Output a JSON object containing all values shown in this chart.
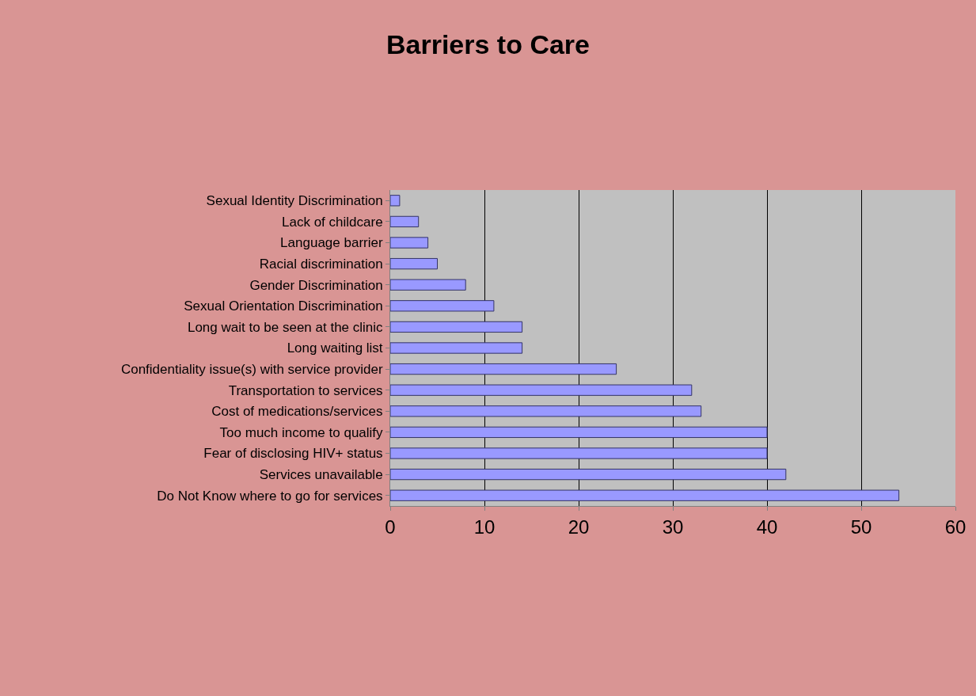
{
  "chart_data": {
    "type": "bar",
    "orientation": "horizontal",
    "title": "Barriers to Care",
    "categories": [
      "Sexual Identity Discrimination",
      "Lack of childcare",
      "Language barrier",
      "Racial discrimination",
      "Gender Discrimination",
      "Sexual Orientation Discrimination",
      "Long wait to be seen at the clinic",
      "Long waiting list",
      "Confidentiality issue(s) with service provider",
      "Transportation to services",
      "Cost of medications/services",
      "Too much income to qualify",
      "Fear of disclosing HIV+ status",
      "Services unavailable",
      "Do Not Know where to go for services"
    ],
    "values": [
      1,
      3,
      4,
      5,
      8,
      11,
      14,
      14,
      24,
      32,
      33,
      40,
      40,
      42,
      54
    ],
    "color": "#9999ff",
    "xlim": [
      0,
      60
    ],
    "xticks": [
      0,
      10,
      20,
      30,
      40,
      50,
      60
    ],
    "grid": "x"
  }
}
